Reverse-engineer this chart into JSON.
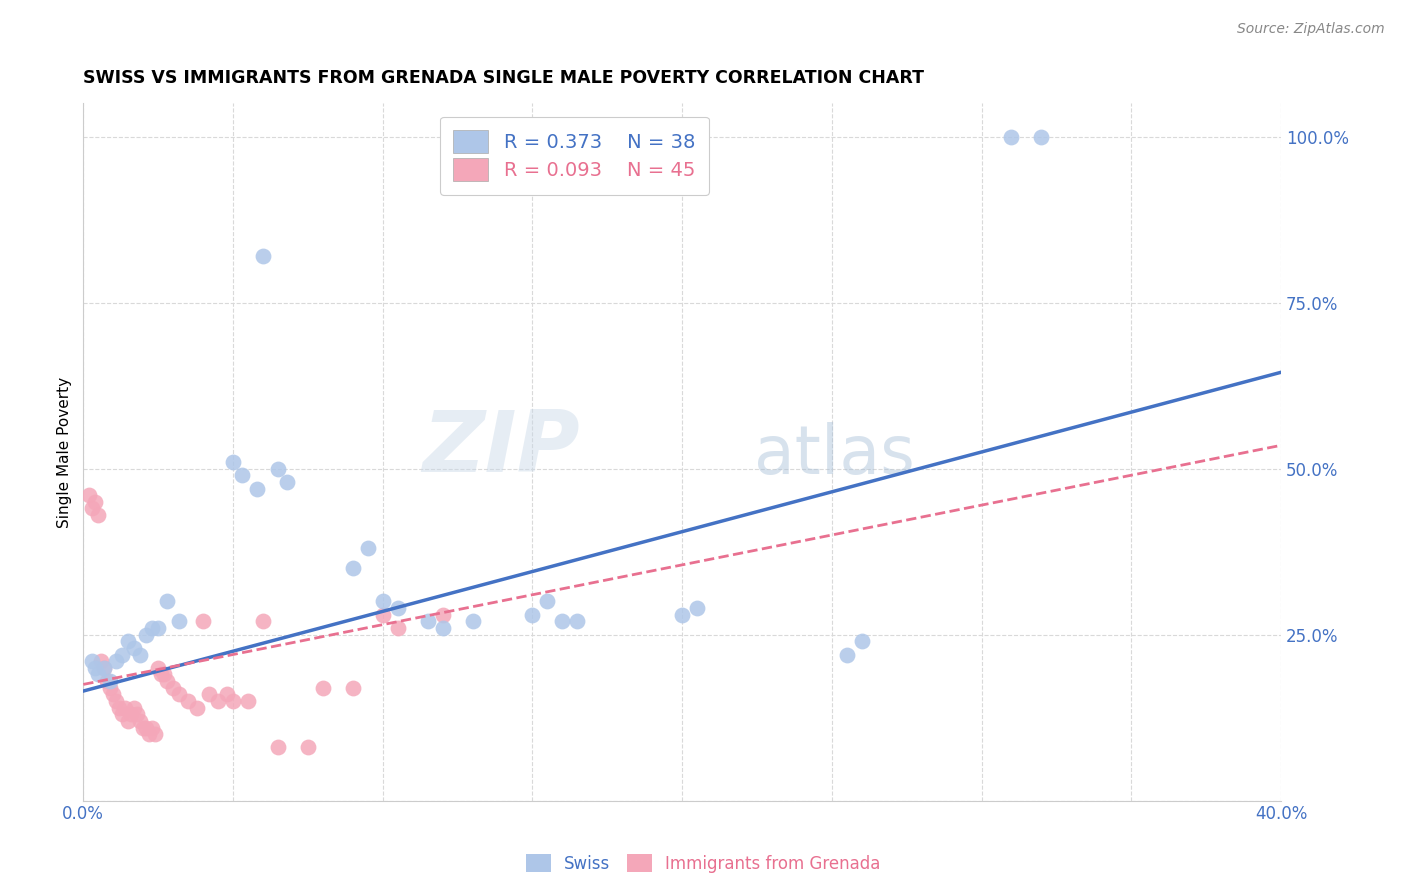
{
  "title": "SWISS VS IMMIGRANTS FROM GRENADA SINGLE MALE POVERTY CORRELATION CHART",
  "source": "Source: ZipAtlas.com",
  "ylabel": "Single Male Poverty",
  "xlim": [
    0.0,
    0.4
  ],
  "ylim": [
    0.0,
    1.05
  ],
  "xticks": [
    0.0,
    0.05,
    0.1,
    0.15,
    0.2,
    0.25,
    0.3,
    0.35,
    0.4
  ],
  "xticklabels": [
    "0.0%",
    "",
    "",
    "",
    "",
    "",
    "",
    "",
    "40.0%"
  ],
  "ytick_positions": [
    0.0,
    0.25,
    0.5,
    0.75,
    1.0
  ],
  "ytick_labels": [
    "",
    "25.0%",
    "50.0%",
    "75.0%",
    "100.0%"
  ],
  "ytick_color": "#4472c4",
  "xtick_color": "#4472c4",
  "grid_color": "#d9d9d9",
  "swiss_color": "#aec6e8",
  "grenada_color": "#f4a7b9",
  "swiss_line_color": "#4472c4",
  "grenada_line_color": "#e87090",
  "legend_swiss_r": "R = 0.373",
  "legend_swiss_n": "N = 38",
  "legend_grenada_r": "R = 0.093",
  "legend_grenada_n": "N = 45",
  "watermark_zip": "ZIP",
  "watermark_atlas": "atlas",
  "swiss_line_x0": 0.0,
  "swiss_line_y0": 0.165,
  "swiss_line_x1": 0.4,
  "swiss_line_y1": 0.645,
  "grenada_line_x0": 0.0,
  "grenada_line_y0": 0.175,
  "grenada_line_x1": 0.4,
  "grenada_line_y1": 0.535,
  "swiss_x": [
    0.003,
    0.004,
    0.005,
    0.007,
    0.009,
    0.011,
    0.013,
    0.015,
    0.017,
    0.019,
    0.021,
    0.023,
    0.025,
    0.028,
    0.032,
    0.05,
    0.053,
    0.058,
    0.06,
    0.065,
    0.068,
    0.09,
    0.095,
    0.1,
    0.105,
    0.115,
    0.12,
    0.13,
    0.15,
    0.155,
    0.16,
    0.165,
    0.2,
    0.205,
    0.255,
    0.26,
    0.31,
    0.32
  ],
  "swiss_y": [
    0.21,
    0.2,
    0.19,
    0.2,
    0.18,
    0.21,
    0.22,
    0.24,
    0.23,
    0.22,
    0.25,
    0.26,
    0.26,
    0.3,
    0.27,
    0.51,
    0.49,
    0.47,
    0.82,
    0.5,
    0.48,
    0.35,
    0.38,
    0.3,
    0.29,
    0.27,
    0.26,
    0.27,
    0.28,
    0.3,
    0.27,
    0.27,
    0.28,
    0.29,
    0.22,
    0.24,
    1.0,
    1.0
  ],
  "grenada_x": [
    0.002,
    0.003,
    0.004,
    0.005,
    0.006,
    0.007,
    0.008,
    0.009,
    0.01,
    0.011,
    0.012,
    0.013,
    0.014,
    0.015,
    0.016,
    0.017,
    0.018,
    0.019,
    0.02,
    0.021,
    0.022,
    0.023,
    0.024,
    0.025,
    0.026,
    0.027,
    0.028,
    0.03,
    0.032,
    0.035,
    0.038,
    0.04,
    0.042,
    0.045,
    0.048,
    0.05,
    0.055,
    0.06,
    0.065,
    0.075,
    0.08,
    0.09,
    0.1,
    0.105,
    0.12
  ],
  "grenada_y": [
    0.46,
    0.44,
    0.45,
    0.43,
    0.21,
    0.2,
    0.18,
    0.17,
    0.16,
    0.15,
    0.14,
    0.13,
    0.14,
    0.12,
    0.13,
    0.14,
    0.13,
    0.12,
    0.11,
    0.11,
    0.1,
    0.11,
    0.1,
    0.2,
    0.19,
    0.19,
    0.18,
    0.17,
    0.16,
    0.15,
    0.14,
    0.27,
    0.16,
    0.15,
    0.16,
    0.15,
    0.15,
    0.27,
    0.08,
    0.08,
    0.17,
    0.17,
    0.28,
    0.26,
    0.28
  ]
}
